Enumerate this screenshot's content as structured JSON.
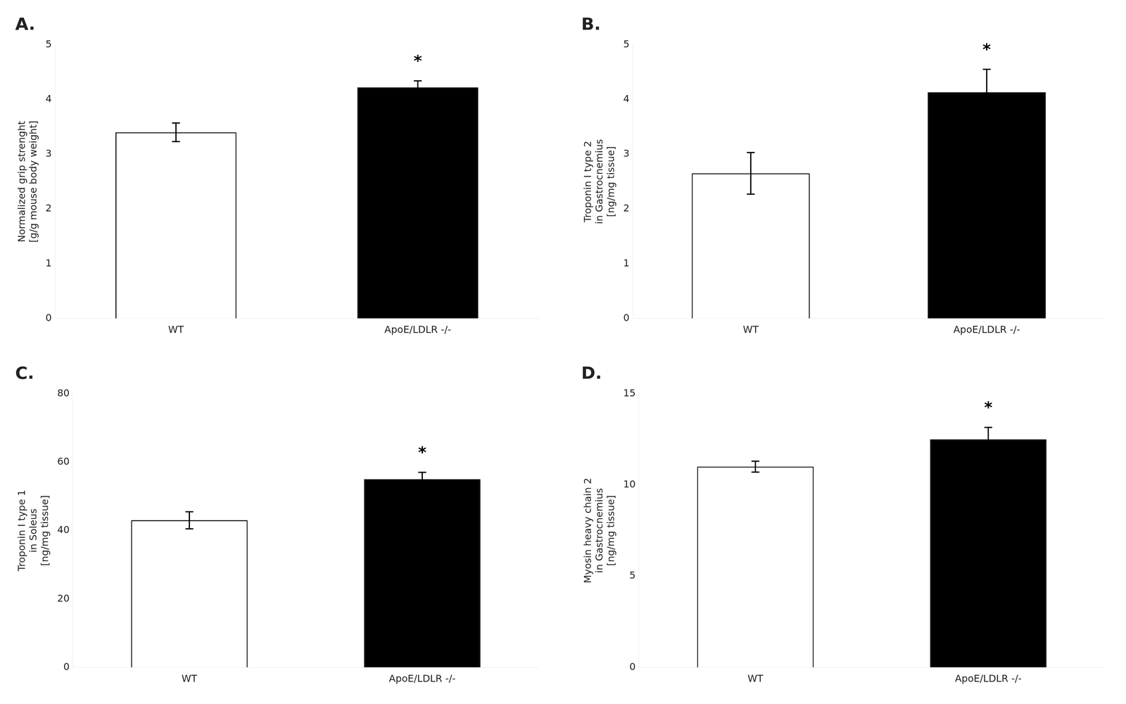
{
  "chart_data": [
    {
      "type": "bar",
      "title": "A.",
      "ylabel": "Normalized grip strenght\n[g/g mouse body weight]",
      "categories": [
        "WT",
        "ApoE/LDLR -/-"
      ],
      "values": [
        3.4,
        4.22
      ],
      "errors": [
        0.17,
        0.12
      ],
      "colors": [
        "white",
        "black"
      ],
      "ylim": [
        0,
        5
      ],
      "yticks": [
        0,
        1,
        2,
        3,
        4,
        5
      ],
      "grid": false,
      "annotations": [
        {
          "text": "*",
          "category": "ApoE/LDLR -/-"
        }
      ]
    },
    {
      "type": "bar",
      "title": "B.",
      "ylabel": "Troponin I type 2\nin Gastrocnemius\n[ng/mg tissue]",
      "categories": [
        "WT",
        "ApoE/LDLR -/-"
      ],
      "values": [
        2.65,
        4.13
      ],
      "errors": [
        0.38,
        0.42
      ],
      "colors": [
        "white",
        "black"
      ],
      "ylim": [
        0,
        5
      ],
      "yticks": [
        0,
        1,
        2,
        3,
        4,
        5
      ],
      "grid": false,
      "annotations": [
        {
          "text": "*",
          "category": "ApoE/LDLR -/-"
        }
      ]
    },
    {
      "type": "bar",
      "title": "C.",
      "ylabel": "Troponin I type 1\nin Soleus\n[ng/mg tissue]",
      "categories": [
        "WT",
        "ApoE/LDLR -/-"
      ],
      "values": [
        43.0,
        55.0
      ],
      "errors": [
        2.5,
        2.0
      ],
      "colors": [
        "white",
        "black"
      ],
      "ylim": [
        0,
        80
      ],
      "yticks": [
        0,
        20,
        40,
        60,
        80
      ],
      "grid": false,
      "annotations": [
        {
          "text": "*",
          "category": "ApoE/LDLR -/-"
        }
      ]
    },
    {
      "type": "bar",
      "title": "D.",
      "ylabel": "Myosin heavy chain 2\nin Gastrocnemius\n[ng/mg tissue]",
      "categories": [
        "WT",
        "ApoE/LDLR -/-"
      ],
      "values": [
        11.0,
        12.5
      ],
      "errors": [
        0.3,
        0.65
      ],
      "colors": [
        "white",
        "black"
      ],
      "ylim": [
        0,
        15
      ],
      "yticks": [
        0,
        5,
        10,
        15
      ],
      "grid": false,
      "annotations": [
        {
          "text": "*",
          "category": "ApoE/LDLR -/-"
        }
      ]
    }
  ]
}
